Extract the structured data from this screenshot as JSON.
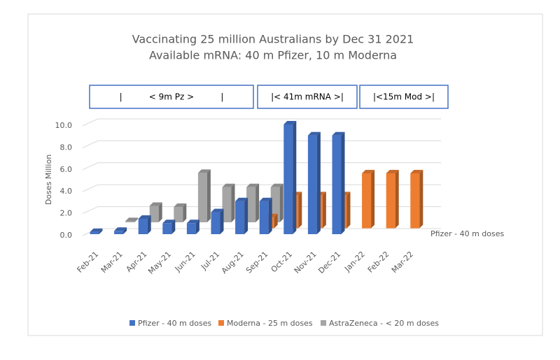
{
  "chart_data": {
    "type": "bar3d",
    "title": [
      "Vaccinating 25 million Australians by Dec 31 2021",
      "Available mRNA: 40 m Pfizer, 10 m Moderna"
    ],
    "annotations": [
      "|          < 9m Pz >          |",
      "|< 41m mRNA >|",
      "|<15m Mod >|"
    ],
    "y_label": "Doses Million",
    "categories": [
      "Feb-21",
      "Mar-21",
      "Apr-21",
      "May-21",
      "Jun-21",
      "Jul-21",
      "Aug-21",
      "Sep-21",
      "Oct-21",
      "Nov-21",
      "Dec-21",
      "Jan-22",
      "Feb-22",
      "Mar-22"
    ],
    "series": [
      {
        "name": "Pfizer - 40 m doses",
        "color": "#4472c4",
        "values": [
          0.2,
          0.3,
          1.4,
          1.0,
          1.0,
          2.0,
          3.0,
          3.0,
          10.0,
          9.0,
          9.0,
          null,
          null,
          null
        ]
      },
      {
        "name": "Moderna - 25 m doses",
        "color": "#ed7d31",
        "values": [
          null,
          null,
          null,
          null,
          null,
          null,
          null,
          1.0,
          3.0,
          3.0,
          3.0,
          5.0,
          5.0,
          5.0
        ]
      },
      {
        "name": "AstraZeneca - < 20 m doses",
        "color": "#a5a5a5",
        "values": [
          null,
          0.1,
          1.5,
          1.4,
          4.5,
          3.2,
          3.2,
          3.2,
          null,
          null,
          null,
          null,
          null,
          null
        ]
      }
    ],
    "ylim": [
      0,
      10
    ],
    "yticks": [
      {
        "value": 0,
        "label": "0.0"
      },
      {
        "value": 2,
        "label": "2.0"
      },
      {
        "value": 4,
        "label": "4.0"
      },
      {
        "value": 6,
        "label": "6.0"
      },
      {
        "value": 8,
        "label": "8.0"
      },
      {
        "value": 10,
        "label": "10.0"
      }
    ],
    "grid": true
  }
}
